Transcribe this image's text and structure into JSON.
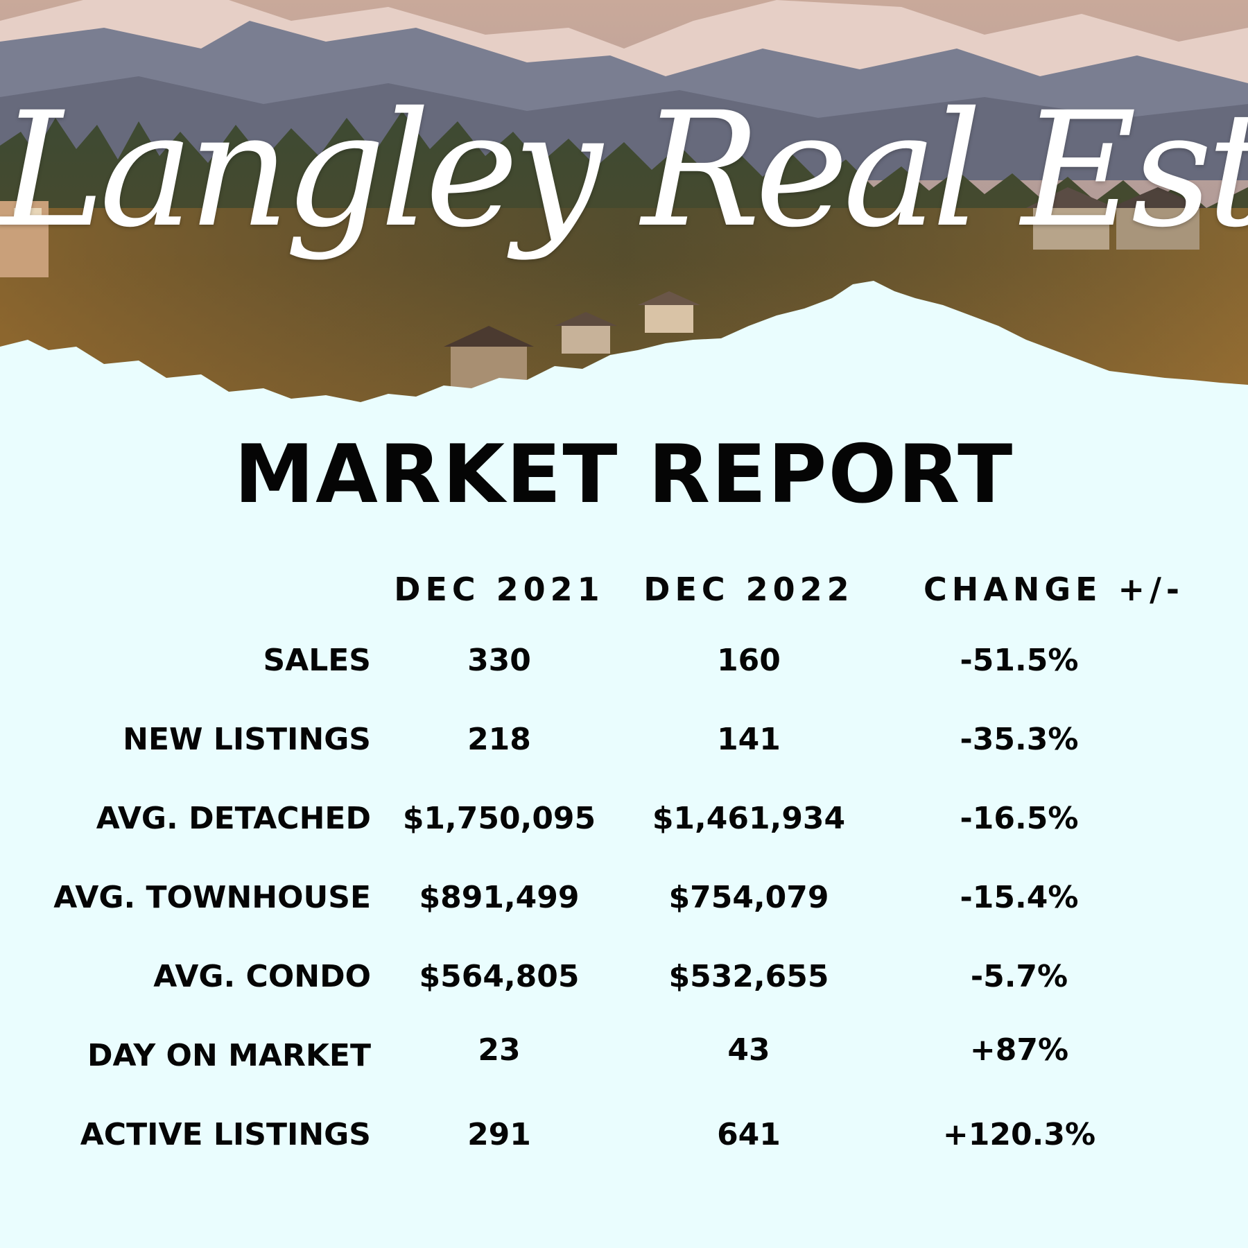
{
  "header": {
    "script_title": "Langley Real Estate",
    "report_title": "MARKET REPORT"
  },
  "colors": {
    "background": "#eafdfe",
    "text": "#050505",
    "script_text": "#ffffff"
  },
  "table": {
    "columns": [
      "DEC 2021",
      "DEC 2022",
      "CHANGE +/-"
    ],
    "rows": [
      {
        "label": "SALES",
        "dec_2021": "330",
        "dec_2022": "160",
        "change": "-51.5%"
      },
      {
        "label": "NEW LISTINGS",
        "dec_2021": "218",
        "dec_2022": "141",
        "change": "-35.3%"
      },
      {
        "label": "AVG. DETACHED",
        "dec_2021": "$1,750,095",
        "dec_2022": "$1,461,934",
        "change": "-16.5%"
      },
      {
        "label": "AVG. TOWNHOUSE",
        "dec_2021": "$891,499",
        "dec_2022": "$754,079",
        "change": "-15.4%"
      },
      {
        "label": "AVG. CONDO",
        "dec_2021": "$564,805",
        "dec_2022": "$532,655",
        "change": "-5.7%"
      },
      {
        "label": "DAY ON MARKET",
        "dec_2021": "23",
        "dec_2022": "43",
        "change": "+87%"
      },
      {
        "label": "ACTIVE LISTINGS",
        "dec_2021": "291",
        "dec_2022": "641",
        "change": "+120.3%"
      }
    ]
  }
}
